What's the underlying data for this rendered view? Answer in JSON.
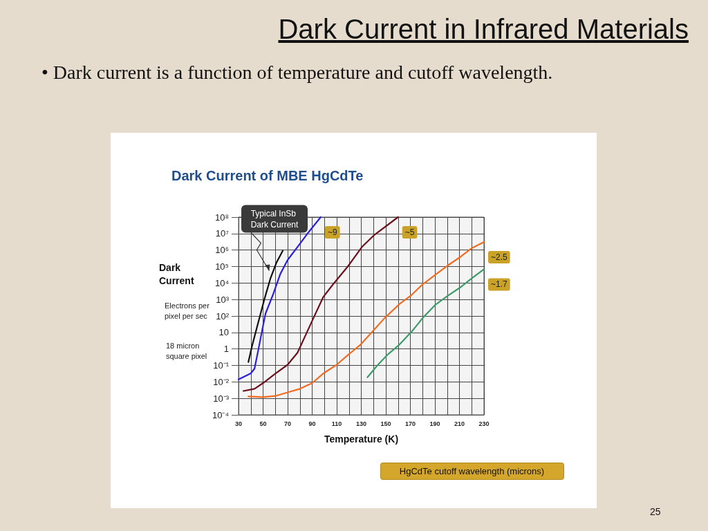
{
  "chart_data": {
    "type": "line",
    "title": "Dark Current in Infrared Materials",
    "subtitle": "• Dark current is a function of temperature and cutoff wavelength.",
    "xlabel": "Temperature (K)",
    "ylabel": "Dark Current",
    "legend_title": "HgCdTe cutoff wavelength (microns)",
    "annotations": [
      "Dark Current of MBE HgCdTe",
      "Electrons per pixel per sec",
      "18 micron square pixel",
      "25",
      {
        "text": "Typical InSb Dark Current",
        "x": 55,
        "y": 56000
      }
    ],
    "log": "y",
    "grid": true,
    "xlim": [
      30,
      230
    ],
    "xticks": [
      30,
      {
        "value": 40,
        "label": null
      },
      50,
      {
        "value": 60,
        "label": null
      },
      70,
      {
        "value": 80,
        "label": null
      },
      90,
      {
        "value": 100,
        "label": null
      },
      110,
      {
        "value": 120,
        "label": null
      },
      130,
      {
        "value": 140,
        "label": null
      },
      150,
      {
        "value": 160,
        "label": null
      },
      170,
      {
        "value": 180,
        "label": null
      },
      190,
      {
        "value": 200,
        "label": null
      },
      210,
      {
        "value": 220,
        "label": null
      },
      230
    ],
    "ylim": [
      0.0001,
      100000000
    ],
    "yticks": [
      {
        "value": 0.0001,
        "label": "10⁻⁴"
      },
      {
        "value": 0.001,
        "label": "10⁻³"
      },
      {
        "value": 0.01,
        "label": "10⁻²"
      },
      {
        "value": 0.1,
        "label": "10⁻¹"
      },
      1,
      10,
      {
        "value": 100,
        "label": "10²"
      },
      {
        "value": 1000,
        "label": "10³"
      },
      {
        "value": 10000,
        "label": "10⁴"
      },
      {
        "value": 100000,
        "label": "10⁵"
      },
      {
        "value": 1000000,
        "label": "10⁶"
      },
      {
        "value": 10000000,
        "label": "10⁷"
      },
      {
        "value": 100000000,
        "label": "10⁸"
      }
    ],
    "series": [
      {
        "color": "#111111",
        "x": [
          38,
          41,
          46,
          51,
          56,
          61,
          66
        ],
        "values": [
          0.16,
          1.5,
          39,
          1000,
          19000,
          180000,
          910000
        ]
      },
      {
        "name": "~9",
        "color": "#2a1fe0",
        "x": [
          30,
          40,
          43,
          46,
          49,
          52,
          58,
          64,
          70,
          80,
          87,
          97
        ],
        "values": [
          0.014,
          0.033,
          0.063,
          0.79,
          11,
          140,
          1900,
          35000,
          250000,
          2400000,
          12000000,
          100000000
        ]
      },
      {
        "name": "~5",
        "color": "#6b0f1a",
        "x": [
          34,
          43,
          50,
          60,
          70,
          78,
          85,
          91,
          99,
          107,
          119,
          131,
          141,
          160
        ],
        "values": [
          0.0028,
          0.0038,
          0.0085,
          0.032,
          0.11,
          0.58,
          7.8,
          74,
          1400,
          8300,
          100000,
          1700000,
          8700000,
          100000000
        ]
      },
      {
        "name": "~2.5",
        "color": "#f26b21",
        "x": [
          38,
          50,
          60,
          70,
          80,
          90,
          99,
          110,
          119,
          129,
          139,
          149,
          161,
          171,
          180,
          190,
          200,
          210,
          220,
          230
        ],
        "values": [
          0.0013,
          0.0012,
          0.0014,
          0.0023,
          0.0038,
          0.0085,
          0.032,
          0.11,
          0.42,
          1.7,
          11,
          74,
          520,
          1900,
          8300,
          30000,
          110000,
          350000,
          1300000,
          3100000
        ]
      },
      {
        "name": "~1.7",
        "color": "#3d9a6a",
        "x": [
          135,
          143,
          151,
          161,
          171,
          180,
          190,
          200,
          210,
          220,
          230
        ],
        "values": [
          0.019,
          0.098,
          0.42,
          1.8,
          11,
          74,
          450,
          1600,
          5000,
          19000,
          68000
        ]
      }
    ]
  }
}
